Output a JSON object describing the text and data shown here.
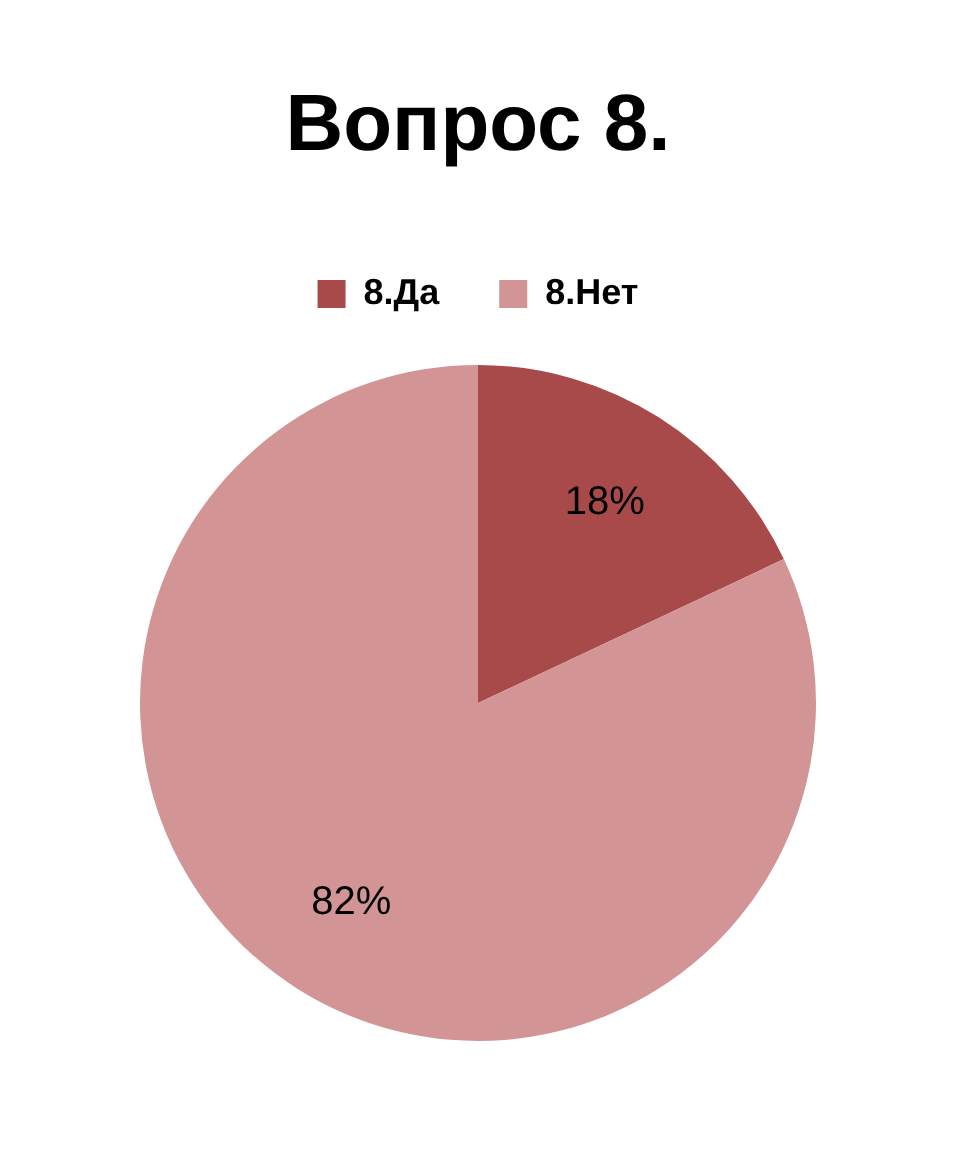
{
  "chart_data": {
    "type": "pie",
    "title": "Вопрос 8.",
    "categories": [
      "8.Да",
      "8.Нет"
    ],
    "values": [
      18,
      82
    ],
    "colors": [
      "#a84a4a",
      "#d29494"
    ],
    "legend": "top",
    "value_labels": [
      "18%",
      "82%"
    ]
  }
}
